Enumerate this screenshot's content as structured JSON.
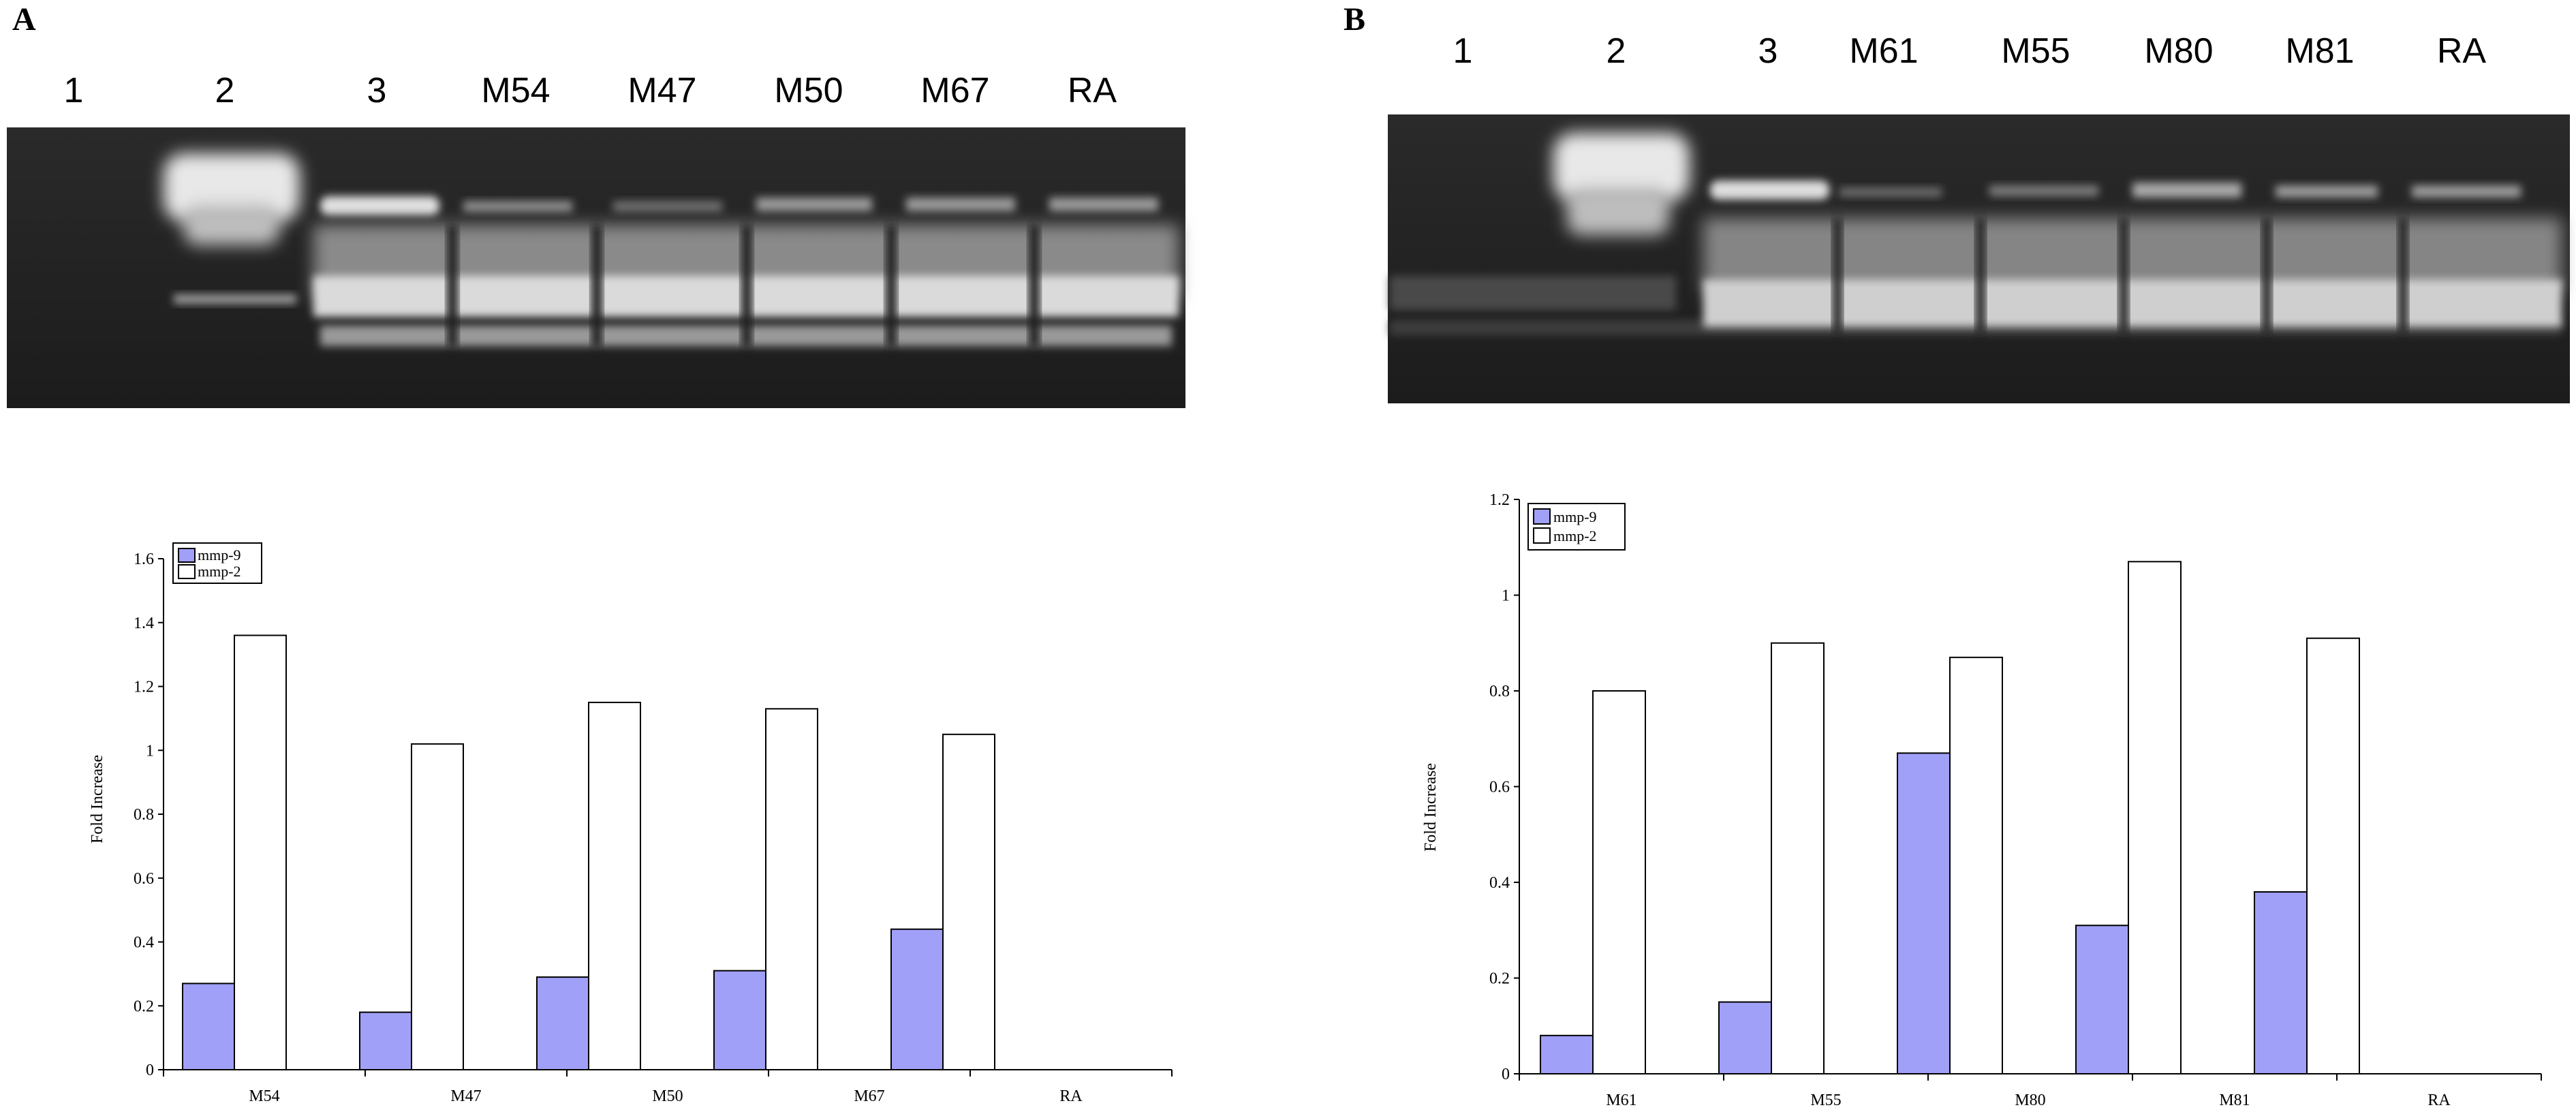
{
  "panels": [
    {
      "label": "A",
      "lanes": [
        "1",
        "2",
        "3",
        "M54",
        "M47",
        "M50",
        "M67",
        "RA"
      ]
    },
    {
      "label": "B",
      "lanes": [
        "1",
        "2",
        "3",
        "M61",
        "M55",
        "M80",
        "M81",
        "RA"
      ]
    }
  ],
  "colors": {
    "mmp9": "#a0a0f8",
    "mmp2": "#ffffff",
    "axis": "#000000"
  },
  "chart_data": [
    {
      "type": "bar",
      "categories": [
        "M54",
        "M47",
        "M50",
        "M67",
        "RA"
      ],
      "series": [
        {
          "name": "mmp-9",
          "values": [
            0.27,
            0.18,
            0.29,
            0.31,
            0.44
          ]
        },
        {
          "name": "mmp-2",
          "values": [
            1.36,
            1.02,
            1.15,
            1.13,
            1.05
          ]
        }
      ],
      "title": "",
      "xlabel": "",
      "ylabel": "Fold Increase",
      "ylim": [
        0,
        1.6
      ],
      "yticks": [
        "0",
        "0.2",
        "0.4",
        "0.6",
        "0.8",
        "1",
        "1.2",
        "1.4",
        "1.6"
      ],
      "legend": "top-left",
      "grid": false
    },
    {
      "type": "bar",
      "categories": [
        "M61",
        "M55",
        "M80",
        "M81",
        "RA"
      ],
      "series": [
        {
          "name": "mmp-9",
          "values": [
            0.08,
            0.15,
            0.67,
            0.31,
            0.38
          ]
        },
        {
          "name": "mmp-2",
          "values": [
            0.8,
            0.9,
            0.87,
            1.07,
            0.91
          ]
        }
      ],
      "title": "",
      "xlabel": "",
      "ylabel": "Fold Increase",
      "ylim": [
        0,
        1.2
      ],
      "yticks": [
        "0",
        "0.2",
        "0.4",
        "0.6",
        "0.8",
        "1",
        "1.2"
      ],
      "legend": "top-left",
      "grid": false
    }
  ]
}
